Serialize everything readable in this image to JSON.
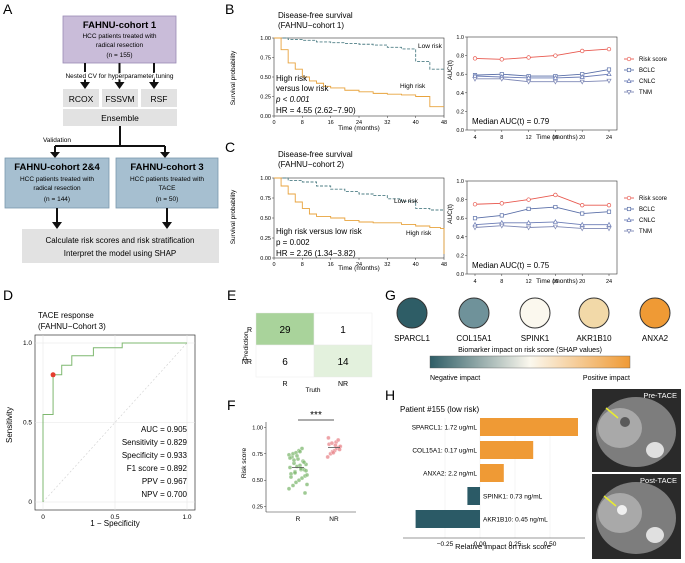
{
  "panels": {
    "A": "A",
    "B": "B",
    "C": "C",
    "D": "D",
    "E": "E",
    "F": "F",
    "G": "G",
    "H": "H"
  },
  "flow": {
    "cohort1_title": "FAHNU-cohort 1",
    "cohort1_l1": "HCC patients treated with",
    "cohort1_l2": "radical resection",
    "cohort1_n": "(n = 155)",
    "nested_cv": "Nested CV for hyperparameter tuning",
    "models": [
      "RCOX",
      "FSSVM",
      "RSF"
    ],
    "ensemble": "Ensemble",
    "validation": "Validation",
    "cohort24_title": "FAHNU-cohort 2&4",
    "cohort24_l1": "HCC patients treated with",
    "cohort24_l2": "radical resection",
    "cohort24_n": "(n = 144)",
    "cohort3_title": "FAHNU-cohort 3",
    "cohort3_l1": "HCC patients treated with",
    "cohort3_l2": "TACE",
    "cohort3_n": "(n = 50)",
    "final_l1": "Calculate risk scores and risk stratification",
    "final_l2": "Interpret the model using SHAP"
  },
  "km_B": {
    "title1": "Disease-free survival",
    "title2": "(FAHNU−cohort 1)",
    "ylabel": "Survival probability",
    "xlabel": "Time (months)",
    "xticks": [
      "0",
      "8",
      "16",
      "24",
      "32",
      "40",
      "48"
    ],
    "yticks": [
      "0.00",
      "0.25",
      "0.50",
      "0.75",
      "1.00"
    ],
    "low_label": "Low risk",
    "high_label": "High risk",
    "ann1": "High risk",
    "ann2": "versus low risk",
    "p": "p < 0.001",
    "hr": "HR = 4.55 (2.62−7.90)"
  },
  "km_C": {
    "title1": "Disease-free survival",
    "title2": "(FAHNU−cohort 2)",
    "ylabel": "Survival probability",
    "xlabel": "Time (months)",
    "xticks": [
      "0",
      "8",
      "16",
      "24",
      "32",
      "40",
      "48"
    ],
    "yticks": [
      "0.00",
      "0.25",
      "0.50",
      "0.75",
      "1.00"
    ],
    "low_label": "Low risk",
    "high_label": "High risk",
    "ann1": "High risk versus low risk",
    "p": "p = 0.002",
    "hr": "HR = 2.26 (1.34−3.82)"
  },
  "auc_B": {
    "ylabel": "AUC(t)",
    "xlabel": "Time (months)",
    "xticks": [
      "4",
      "8",
      "12",
      "16",
      "20",
      "24"
    ],
    "yticks": [
      "0.0",
      "0.2",
      "0.4",
      "0.6",
      "0.8",
      "1.0"
    ],
    "median": "Median AUC(t) = 0.79"
  },
  "auc_C": {
    "ylabel": "AUC(t)",
    "xlabel": "Time (months)",
    "xticks": [
      "4",
      "8",
      "12",
      "16",
      "20",
      "24"
    ],
    "yticks": [
      "0.0",
      "0.2",
      "0.4",
      "0.6",
      "0.8",
      "1.0"
    ],
    "median": "Median AUC(t) = 0.75"
  },
  "legend": [
    "Risk score",
    "BCLC",
    "CNLC",
    "TNM"
  ],
  "colors": {
    "risk": "#e8594f",
    "bclc": "#5a6fa8",
    "cnlc": "#6a7bb5",
    "tnm": "#7d87b5",
    "low": "#4f7f86",
    "high": "#e8a33d",
    "green": "#7fb870",
    "teal": "#2b5a66",
    "orange": "#ef9a35"
  },
  "roc": {
    "title1": "TACE response",
    "title2": "(FAHNU−Cohort 3)",
    "ylabel": "Sensitivity",
    "xlabel": "1 − Specificity",
    "xticks": [
      "0",
      "0.5",
      "1.0"
    ],
    "yticks": [
      "0",
      "0.5",
      "1.0"
    ],
    "metrics": [
      "AUC = 0.905",
      "Sensitivity = 0.829",
      "Specificity = 0.933",
      "F1 score = 0.892",
      "PPV = 0.967",
      "NPV = 0.700"
    ]
  },
  "confusion": {
    "ylabel": "Prediction",
    "xlabel": "Truth",
    "rows": [
      "R",
      "NR"
    ],
    "cols": [
      "R",
      "NR"
    ],
    "cells": [
      [
        "29",
        "1"
      ],
      [
        "6",
        "14"
      ]
    ]
  },
  "strip": {
    "ylabel": "Risk score",
    "yticks": [
      "0.25",
      "0.50",
      "0.75",
      "1.00"
    ],
    "groups": [
      "R",
      "NR"
    ],
    "sig": "***"
  },
  "shap_legend": {
    "genes": [
      "SPARCL1",
      "COL15A1",
      "SPINK1",
      "AKR1B10",
      "ANXA2"
    ],
    "gene_colors": [
      "#2e5d66",
      "#6f929a",
      "#fbf8ee",
      "#f2d9a8",
      "#ef9a35"
    ],
    "caption": "Biomarker impact on risk score (SHAP values)",
    "neg": "Negative impact",
    "pos": "Positive impact"
  },
  "shap_bar": {
    "patient": "Patient #155 (low risk)",
    "features": [
      {
        "label": "SPARCL1: 1.72 ug/mL",
        "value": 0.7
      },
      {
        "label": "COL15A1: 0.17 ug/mL",
        "value": 0.38
      },
      {
        "label": "ANXA2: 2.2 ng/mL",
        "value": 0.17
      },
      {
        "label": "SPINK1: 0.73 ng/mL",
        "value": -0.09
      },
      {
        "label": "AKR1B10: 0.45 ng/mL",
        "value": -0.46
      }
    ],
    "xticks": [
      "−0.25",
      "0.00",
      "0.25",
      "0.50"
    ],
    "xlabel": "Relative impact on risk score",
    "pre": "Pre-TACE",
    "post": "Post-TACE"
  },
  "chart_data": [
    {
      "type": "line",
      "title": "Disease-free survival (FAHNU−cohort 1)",
      "xlabel": "Time (months)",
      "ylabel": "Survival probability",
      "ylim": [
        0,
        1
      ],
      "xlim": [
        0,
        48
      ],
      "series": [
        {
          "name": "Low risk",
          "x": [
            0,
            4,
            8,
            12,
            16,
            20,
            24,
            28,
            32,
            36,
            40,
            44,
            48
          ],
          "values": [
            1,
            0.98,
            0.97,
            0.95,
            0.94,
            0.93,
            0.92,
            0.91,
            0.88,
            0.86,
            0.7,
            0.6,
            0.6
          ]
        },
        {
          "name": "High risk",
          "x": [
            0,
            2,
            4,
            6,
            8,
            10,
            12,
            14,
            16,
            20,
            24,
            28,
            32,
            36,
            40,
            44,
            48
          ],
          "values": [
            1,
            0.85,
            0.68,
            0.6,
            0.5,
            0.45,
            0.42,
            0.38,
            0.36,
            0.33,
            0.31,
            0.29,
            0.28,
            0.27,
            0.25,
            0.12,
            0.12
          ]
        }
      ]
    },
    {
      "type": "line",
      "title": "AUC(t) cohort 1",
      "xlabel": "Time (months)",
      "ylabel": "AUC(t)",
      "ylim": [
        0,
        1
      ],
      "categories": [
        "4",
        "8",
        "12",
        "16",
        "20",
        "24"
      ],
      "series": [
        {
          "name": "Risk score",
          "values": [
            0.77,
            0.76,
            0.78,
            0.8,
            0.85,
            0.87
          ]
        },
        {
          "name": "BCLC",
          "values": [
            0.59,
            0.6,
            0.58,
            0.58,
            0.6,
            0.65
          ]
        },
        {
          "name": "CNLC",
          "values": [
            0.58,
            0.57,
            0.56,
            0.56,
            0.57,
            0.6
          ]
        },
        {
          "name": "TNM",
          "values": [
            0.55,
            0.55,
            0.52,
            0.52,
            0.52,
            0.53
          ]
        }
      ]
    },
    {
      "type": "line",
      "title": "Disease-free survival (FAHNU−cohort 2)",
      "xlabel": "Time (months)",
      "ylabel": "Survival probability",
      "ylim": [
        0,
        1
      ],
      "xlim": [
        0,
        48
      ],
      "series": [
        {
          "name": "Low risk",
          "x": [
            0,
            4,
            8,
            12,
            16,
            20,
            24,
            28,
            32,
            36,
            40,
            44,
            48
          ],
          "values": [
            1,
            0.97,
            0.95,
            0.9,
            0.86,
            0.83,
            0.8,
            0.78,
            0.74,
            0.71,
            0.62,
            0.6,
            0.6
          ]
        },
        {
          "name": "High risk",
          "x": [
            0,
            2,
            4,
            6,
            8,
            10,
            12,
            16,
            20,
            24,
            28,
            32,
            36,
            40,
            44,
            47,
            48
          ],
          "values": [
            1,
            0.9,
            0.8,
            0.7,
            0.62,
            0.55,
            0.52,
            0.5,
            0.47,
            0.45,
            0.44,
            0.44,
            0.42,
            0.4,
            0.38,
            0.37,
            0.05
          ]
        }
      ]
    },
    {
      "type": "line",
      "title": "AUC(t) cohort 2",
      "xlabel": "Time (months)",
      "ylabel": "AUC(t)",
      "ylim": [
        0,
        1
      ],
      "categories": [
        "4",
        "8",
        "12",
        "16",
        "20",
        "24"
      ],
      "series": [
        {
          "name": "Risk score",
          "values": [
            0.75,
            0.76,
            0.8,
            0.85,
            0.74,
            0.74
          ]
        },
        {
          "name": "BCLC",
          "values": [
            0.6,
            0.63,
            0.7,
            0.72,
            0.65,
            0.67
          ]
        },
        {
          "name": "CNLC",
          "values": [
            0.53,
            0.55,
            0.55,
            0.56,
            0.53,
            0.53
          ]
        },
        {
          "name": "TNM",
          "values": [
            0.5,
            0.52,
            0.5,
            0.51,
            0.49,
            0.49
          ]
        }
      ]
    },
    {
      "type": "line",
      "title": "TACE response (FAHNU−Cohort 3)",
      "xlabel": "1 − Specificity",
      "ylabel": "Sensitivity",
      "ylim": [
        0,
        1
      ],
      "series": [
        {
          "name": "ROC",
          "x": [
            0,
            0,
            0.07,
            0.07,
            0.13,
            0.13,
            0.2,
            0.2,
            0.35,
            0.35,
            0.55,
            0.55,
            1
          ],
          "values": [
            0,
            0.55,
            0.55,
            0.8,
            0.8,
            0.86,
            0.86,
            0.92,
            0.92,
            0.97,
            0.97,
            1,
            1
          ]
        }
      ]
    },
    {
      "type": "table",
      "title": "Confusion matrix",
      "rows": [
        "R",
        "NR"
      ],
      "columns": [
        "R",
        "NR"
      ],
      "values": [
        [
          29,
          1
        ],
        [
          6,
          14
        ]
      ]
    },
    {
      "type": "scatter",
      "ylabel": "Risk score",
      "categories": [
        "R",
        "NR"
      ],
      "series": [
        {
          "name": "R",
          "values": [
            0.42,
            0.45,
            0.48,
            0.5,
            0.52,
            0.54,
            0.55,
            0.56,
            0.58,
            0.6,
            0.6,
            0.62,
            0.63,
            0.64,
            0.65,
            0.66,
            0.68,
            0.7,
            0.72,
            0.74,
            0.75,
            0.76,
            0.78,
            0.8,
            0.38,
            0.46,
            0.53,
            0.57,
            0.61,
            0.67,
            0.71,
            0.73,
            0.77,
            0.59,
            0.69
          ]
        },
        {
          "name": "NR",
          "values": [
            0.72,
            0.75,
            0.77,
            0.78,
            0.8,
            0.81,
            0.82,
            0.84,
            0.85,
            0.86,
            0.88,
            0.9,
            0.76,
            0.83,
            0.79
          ]
        }
      ]
    },
    {
      "type": "bar",
      "title": "Patient #155 (low risk)",
      "xlabel": "Relative impact on risk score",
      "categories": [
        "SPARCL1: 1.72 ug/mL",
        "COL15A1: 0.17 ug/mL",
        "ANXA2: 2.2 ng/mL",
        "SPINK1: 0.73 ng/mL",
        "AKR1B10: 0.45 ng/mL"
      ],
      "values": [
        0.7,
        0.38,
        0.17,
        -0.09,
        -0.46
      ]
    }
  ]
}
